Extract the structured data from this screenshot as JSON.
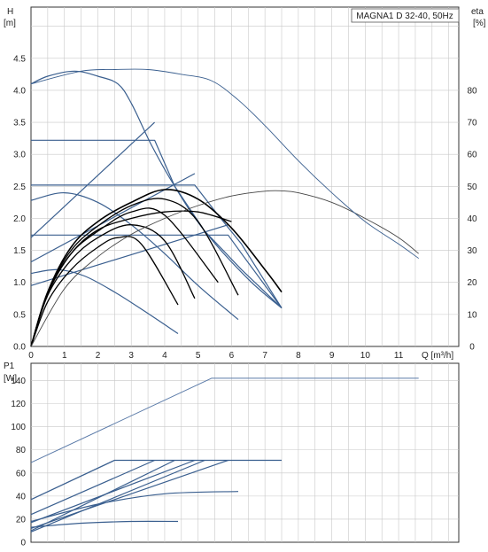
{
  "chart_data": [
    {
      "type": "line",
      "title": "MAGNA1 D 32-40, 50Hz",
      "ylabel_left": [
        "H",
        "[m]"
      ],
      "ylabel_right": [
        "eta",
        "[%]"
      ],
      "xlabel": "Q [m³/h]",
      "xlim": [
        0,
        12.8
      ],
      "ylim": [
        0,
        5.3
      ],
      "eta_lim": [
        0,
        106
      ],
      "x_ticks": [
        "0",
        "1",
        "2",
        "3",
        "4",
        "5",
        "6",
        "7",
        "8",
        "9",
        "10",
        "11"
      ],
      "y_ticks": [
        "0.0",
        "0.5",
        "1.0",
        "1.5",
        "2.0",
        "2.5",
        "3.0",
        "3.5",
        "4.0",
        "4.5"
      ],
      "eta_ticks": [
        "0",
        "10",
        "20",
        "30",
        "40",
        "50",
        "60",
        "70",
        "80"
      ],
      "grid": true,
      "series": [
        {
          "role": "head-max-curve",
          "color": "#3a5f8f",
          "width": 1.2,
          "x": [
            0,
            0.5,
            1.3,
            2.0,
            2.6,
            3.0,
            3.6,
            4.3,
            5.2,
            6.5,
            7.5
          ],
          "y": [
            4.1,
            4.22,
            4.3,
            4.22,
            4.1,
            3.8,
            3.15,
            2.5,
            1.8,
            1.05,
            0.6
          ]
        },
        {
          "role": "constant-pressure-1",
          "color": "#3a5f8f",
          "width": 1.2,
          "x": [
            0,
            3.7,
            4.3,
            5.2,
            6.3,
            7.5
          ],
          "y": [
            3.22,
            3.22,
            2.5,
            1.8,
            1.2,
            0.6
          ]
        },
        {
          "role": "constant-pressure-2",
          "color": "#3a5f8f",
          "width": 1.2,
          "x": [
            0,
            4.9,
            5.6,
            6.3,
            7.5
          ],
          "y": [
            2.52,
            2.52,
            2.05,
            1.6,
            0.6
          ]
        },
        {
          "role": "constant-pressure-3",
          "color": "#3a5f8f",
          "width": 1.2,
          "x": [
            0,
            5.9,
            6.3,
            7.5
          ],
          "y": [
            1.74,
            1.74,
            1.45,
            0.6
          ]
        },
        {
          "role": "proportional-pressure-1",
          "color": "#3a5f8f",
          "width": 1.2,
          "x": [
            0,
            3.7
          ],
          "y": [
            1.7,
            3.5
          ]
        },
        {
          "role": "proportional-pressure-2",
          "color": "#3a5f8f",
          "width": 1.2,
          "x": [
            0,
            4.9
          ],
          "y": [
            1.32,
            2.7
          ]
        },
        {
          "role": "proportional-pressure-3",
          "color": "#3a5f8f",
          "width": 1.2,
          "x": [
            0,
            5.9
          ],
          "y": [
            0.95,
            1.9
          ]
        },
        {
          "role": "speed-curve-1",
          "color": "#3a5f8f",
          "width": 1.2,
          "x": [
            0,
            1.0,
            2.0,
            3.0,
            4.0,
            5.0,
            6.2
          ],
          "y": [
            2.28,
            2.4,
            2.25,
            1.9,
            1.45,
            0.95,
            0.42
          ]
        },
        {
          "role": "speed-curve-2",
          "color": "#3a5f8f",
          "width": 1.2,
          "x": [
            0,
            0.8,
            1.6,
            2.5,
            3.4,
            4.4
          ],
          "y": [
            1.14,
            1.2,
            1.1,
            0.85,
            0.55,
            0.2
          ]
        },
        {
          "role": "duty-curve-1",
          "color": "#000000",
          "width": 1.6,
          "x": [
            0,
            0.5,
            1.2,
            2.0,
            3.0,
            4.0,
            5.0,
            6.0,
            7.0,
            7.5
          ],
          "y": [
            0,
            0.85,
            1.55,
            1.95,
            2.25,
            2.45,
            2.3,
            1.85,
            1.2,
            0.85
          ]
        },
        {
          "role": "duty-curve-2",
          "color": "#000000",
          "width": 1.3,
          "x": [
            0,
            0.5,
            1.2,
            2.0,
            3.0,
            4.0,
            5.0,
            6.2
          ],
          "y": [
            0,
            0.85,
            1.5,
            1.88,
            2.2,
            2.3,
            1.95,
            0.8
          ]
        },
        {
          "role": "duty-curve-3",
          "color": "#000000",
          "width": 1.3,
          "x": [
            0,
            0.5,
            1.2,
            2.0,
            3.0,
            4.0,
            5.6
          ],
          "y": [
            0,
            0.85,
            1.45,
            1.8,
            2.1,
            2.05,
            1.0
          ]
        },
        {
          "role": "duty-curve-4",
          "color": "#000000",
          "width": 1.3,
          "x": [
            0,
            0.5,
            1.2,
            2.0,
            3.0,
            4.0,
            4.9
          ],
          "y": [
            0,
            0.8,
            1.35,
            1.7,
            1.9,
            1.65,
            0.75
          ]
        },
        {
          "role": "duty-curve-5",
          "color": "#000000",
          "width": 1.3,
          "x": [
            0,
            0.5,
            1.2,
            2.0,
            2.6,
            3.3,
            4.4
          ],
          "y": [
            0,
            0.7,
            1.2,
            1.55,
            1.7,
            1.6,
            0.65
          ]
        },
        {
          "role": "duty-curve-6",
          "color": "#000000",
          "width": 1.3,
          "x": [
            0,
            0.5,
            1.2,
            2.0,
            3.0,
            4.0,
            5.0,
            6.0
          ],
          "y": [
            0,
            0.82,
            1.45,
            1.82,
            2.0,
            2.1,
            2.1,
            1.95
          ]
        },
        {
          "role": "eta-curve",
          "axis": "eta",
          "color": "#444444",
          "width": 0.9,
          "x": [
            0,
            1,
            2,
            3,
            4,
            5,
            6,
            7,
            7.5,
            8,
            9,
            10,
            11,
            11.6
          ],
          "y": [
            0,
            18,
            28,
            35,
            40,
            44,
            47,
            48.5,
            48.6,
            48,
            45,
            40,
            34,
            29
          ]
        },
        {
          "role": "eta-max-curve",
          "axis": "eta",
          "color": "#3a5f8f",
          "width": 0.9,
          "x": [
            0,
            1.5,
            2.5,
            3.5,
            4.5,
            5.4,
            6.2,
            7,
            8,
            9,
            10,
            11,
            11.6
          ],
          "y": [
            82,
            86,
            86.5,
            86.5,
            85,
            83,
            77,
            69,
            58,
            48,
            39,
            32,
            27.5
          ]
        }
      ]
    },
    {
      "type": "line",
      "ylabel": [
        "P1",
        "[W]"
      ],
      "xlim": [
        0,
        12.8
      ],
      "ylim": [
        0,
        155
      ],
      "y_ticks": [
        "0",
        "20",
        "40",
        "60",
        "80",
        "100",
        "120",
        "140"
      ],
      "grid": true,
      "series": [
        {
          "role": "power-max",
          "color": "#5a7aa8",
          "width": 1.0,
          "x": [
            0,
            5.4,
            11.6
          ],
          "y": [
            69,
            142,
            142
          ]
        },
        {
          "role": "power-max-run",
          "color": "#3a5f8f",
          "width": 1.3,
          "x": [
            0,
            2.5,
            7.5
          ],
          "y": [
            37,
            71,
            71
          ]
        },
        {
          "role": "power-cp-1",
          "color": "#3a5f8f",
          "width": 1.2,
          "x": [
            0,
            3.7
          ],
          "y": [
            24,
            71
          ]
        },
        {
          "role": "power-cp-2",
          "color": "#3a5f8f",
          "width": 1.2,
          "x": [
            0,
            4.9
          ],
          "y": [
            17,
            71
          ]
        },
        {
          "role": "power-cp-3",
          "color": "#3a5f8f",
          "width": 1.2,
          "x": [
            0,
            5.9
          ],
          "y": [
            12,
            71
          ]
        },
        {
          "role": "power-pp-1",
          "color": "#3a5f8f",
          "width": 1.2,
          "x": [
            0,
            4.3
          ],
          "y": [
            10,
            71
          ]
        },
        {
          "role": "power-pp-2",
          "color": "#3a5f8f",
          "width": 1.2,
          "x": [
            0,
            5.2
          ],
          "y": [
            9,
            71
          ]
        },
        {
          "role": "power-speed-1",
          "color": "#3a5f8f",
          "width": 1.2,
          "x": [
            0,
            2,
            4,
            6.2
          ],
          "y": [
            18,
            33,
            42,
            44
          ]
        },
        {
          "role": "power-speed-2",
          "color": "#3a5f8f",
          "width": 1.2,
          "x": [
            0,
            1.5,
            3,
            4.4
          ],
          "y": [
            13,
            16.5,
            18,
            18
          ]
        }
      ]
    }
  ]
}
